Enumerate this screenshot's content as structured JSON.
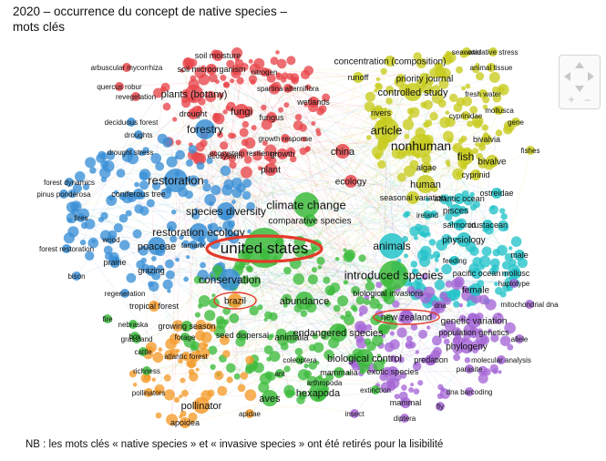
{
  "title": {
    "line1": "2020 – occurrence du concept de native species –",
    "line2": "mots clés"
  },
  "note": "NB : les mots clés « native species » et « invasive species » ont été retirés pour la lisibilité",
  "colors": {
    "red": "#e8464c",
    "blue": "#3a8fd6",
    "green": "#3cbb3c",
    "yellow": "#c8cc1e",
    "cyan": "#22c3c9",
    "purple": "#a566d6",
    "orange": "#f49b2a",
    "highlight": "#e53a2a"
  },
  "navigation": {
    "pan_up_icon": "triangle-up",
    "pan_down_icon": "triangle-down",
    "pan_left_icon": "triangle-left",
    "pan_right_icon": "triangle-right",
    "zoom_in": "+",
    "zoom_out": "–"
  },
  "keywords": [
    {
      "t": "united states",
      "c": "green"
    },
    {
      "t": "introduced species",
      "c": "green"
    },
    {
      "t": "climate change",
      "c": "green"
    },
    {
      "t": "animals",
      "c": "cyan"
    },
    {
      "t": "conservation",
      "c": "blue"
    },
    {
      "t": "article",
      "c": "yellow"
    },
    {
      "t": "nonhuman",
      "c": "yellow"
    },
    {
      "t": "restoration",
      "c": "blue"
    },
    {
      "t": "species diversity",
      "c": "blue"
    },
    {
      "t": "restoration ecology",
      "c": "blue"
    },
    {
      "t": "poaceae",
      "c": "blue"
    },
    {
      "t": "forestry",
      "c": "blue"
    },
    {
      "t": "plants (botany)",
      "c": "red"
    },
    {
      "t": "controlled study",
      "c": "yellow"
    },
    {
      "t": "fish",
      "c": "yellow"
    },
    {
      "t": "human",
      "c": "yellow"
    },
    {
      "t": "abundance",
      "c": "green"
    },
    {
      "t": "endangered species",
      "c": "green"
    },
    {
      "t": "biological control",
      "c": "green"
    },
    {
      "t": "hexapoda",
      "c": "green"
    },
    {
      "t": "aves",
      "c": "green"
    },
    {
      "t": "pollinator",
      "c": "orange"
    },
    {
      "t": "brazil",
      "c": "orange"
    },
    {
      "t": "new zealand",
      "c": "purple"
    },
    {
      "t": "genetic variation",
      "c": "purple"
    },
    {
      "t": "phylogeny",
      "c": "purple"
    },
    {
      "t": "physiology",
      "c": "cyan"
    },
    {
      "t": "female",
      "c": "cyan"
    },
    {
      "t": "china",
      "c": "red"
    },
    {
      "t": "ecology",
      "c": "red"
    },
    {
      "t": "plant",
      "c": "red"
    },
    {
      "t": "fungi",
      "c": "red"
    },
    {
      "t": "fungus",
      "c": "red"
    },
    {
      "t": "drought",
      "c": "red"
    },
    {
      "t": "ecosystem",
      "c": "red"
    },
    {
      "t": "growth",
      "c": "red"
    },
    {
      "t": "seasonal variation",
      "c": "yellow"
    },
    {
      "t": "pisces",
      "c": "cyan"
    },
    {
      "t": "salmonid",
      "c": "cyan"
    },
    {
      "t": "crustacean",
      "c": "cyan"
    },
    {
      "t": "ostreidae",
      "c": "cyan"
    },
    {
      "t": "bivalve",
      "c": "yellow"
    },
    {
      "t": "bivalvia",
      "c": "yellow"
    },
    {
      "t": "cyprinid",
      "c": "yellow"
    },
    {
      "t": "algae",
      "c": "yellow"
    },
    {
      "t": "rivers",
      "c": "yellow"
    },
    {
      "t": "runoff",
      "c": "yellow"
    },
    {
      "t": "priority journal",
      "c": "yellow"
    },
    {
      "t": "concentration (composition)",
      "c": "yellow"
    },
    {
      "t": "animal tissue",
      "c": "yellow"
    },
    {
      "t": "oxidative stress",
      "c": "yellow"
    },
    {
      "t": "fresh water",
      "c": "yellow"
    },
    {
      "t": "cyprinidae",
      "c": "yellow"
    },
    {
      "t": "mollusca",
      "c": "yellow"
    },
    {
      "t": "gene",
      "c": "yellow"
    },
    {
      "t": "fishes",
      "c": "yellow"
    },
    {
      "t": "atlantic ocean",
      "c": "cyan"
    },
    {
      "t": "ireland",
      "c": "cyan"
    },
    {
      "t": "pacific ocean",
      "c": "cyan"
    },
    {
      "t": "mollusc",
      "c": "cyan"
    },
    {
      "t": "male",
      "c": "cyan"
    },
    {
      "t": "feeding",
      "c": "cyan"
    },
    {
      "t": "dna",
      "c": "purple"
    },
    {
      "t": "mitochondrial dna",
      "c": "purple"
    },
    {
      "t": "haplotype",
      "c": "purple"
    },
    {
      "t": "population genetics",
      "c": "purple"
    },
    {
      "t": "allele",
      "c": "purple"
    },
    {
      "t": "molecular analysis",
      "c": "purple"
    },
    {
      "t": "parasite",
      "c": "purple"
    },
    {
      "t": "predation",
      "c": "purple"
    },
    {
      "t": "dna barcoding",
      "c": "purple"
    },
    {
      "t": "mammal",
      "c": "purple"
    },
    {
      "t": "diptera",
      "c": "purple"
    },
    {
      "t": "fly",
      "c": "purple"
    },
    {
      "t": "insect",
      "c": "purple"
    },
    {
      "t": "extinction",
      "c": "green"
    },
    {
      "t": "ant",
      "c": "green"
    },
    {
      "t": "mammalia",
      "c": "green"
    },
    {
      "t": "coleoptera",
      "c": "green"
    },
    {
      "t": "animalia",
      "c": "green"
    },
    {
      "t": "arthropoda",
      "c": "green"
    },
    {
      "t": "biological invasions",
      "c": "green"
    },
    {
      "t": "exotic species",
      "c": "purple"
    },
    {
      "t": "seed dispersal",
      "c": "green"
    },
    {
      "t": "apidae",
      "c": "orange"
    },
    {
      "t": "apoidea",
      "c": "orange"
    },
    {
      "t": "pollinators",
      "c": "orange"
    },
    {
      "t": "richness",
      "c": "green"
    },
    {
      "t": "atlantic forest",
      "c": "orange"
    },
    {
      "t": "cattle",
      "c": "green"
    },
    {
      "t": "bos",
      "c": "green"
    },
    {
      "t": "nebraska",
      "c": "green"
    },
    {
      "t": "fire",
      "c": "green"
    },
    {
      "t": "growing season",
      "c": "green"
    },
    {
      "t": "forage",
      "c": "green"
    },
    {
      "t": "grassland",
      "c": "green"
    },
    {
      "t": "tropical forest",
      "c": "orange"
    },
    {
      "t": "regeneration",
      "c": "blue"
    },
    {
      "t": "bison",
      "c": "blue"
    },
    {
      "t": "grazing",
      "c": "blue"
    },
    {
      "t": "prairie",
      "c": "blue"
    },
    {
      "t": "wood",
      "c": "blue"
    },
    {
      "t": "forest restoration",
      "c": "blue"
    },
    {
      "t": "fires",
      "c": "blue"
    },
    {
      "t": "pinus ponderosa",
      "c": "blue"
    },
    {
      "t": "forest dynamics",
      "c": "blue"
    },
    {
      "t": "coniferous tree",
      "c": "blue"
    },
    {
      "t": "drought stress",
      "c": "blue"
    },
    {
      "t": "droughts",
      "c": "blue"
    },
    {
      "t": "deciduous forest",
      "c": "blue"
    },
    {
      "t": "revegetation",
      "c": "red"
    },
    {
      "t": "quercus robur",
      "c": "red"
    },
    {
      "t": "arbuscular mycorrhiza",
      "c": "red"
    },
    {
      "t": "soil moisture",
      "c": "red"
    },
    {
      "t": "soil microorganism",
      "c": "red"
    },
    {
      "t": "nitrogen",
      "c": "red"
    },
    {
      "t": "spartina alterniflora",
      "c": "red"
    },
    {
      "t": "wetlands",
      "c": "red"
    },
    {
      "t": "ecosystem resilience",
      "c": "red"
    },
    {
      "t": "growth response",
      "c": "red"
    },
    {
      "t": "tamarix",
      "c": "blue"
    },
    {
      "t": "comparative species",
      "c": "green"
    },
    {
      "t": "seawater",
      "c": "yellow"
    }
  ]
}
